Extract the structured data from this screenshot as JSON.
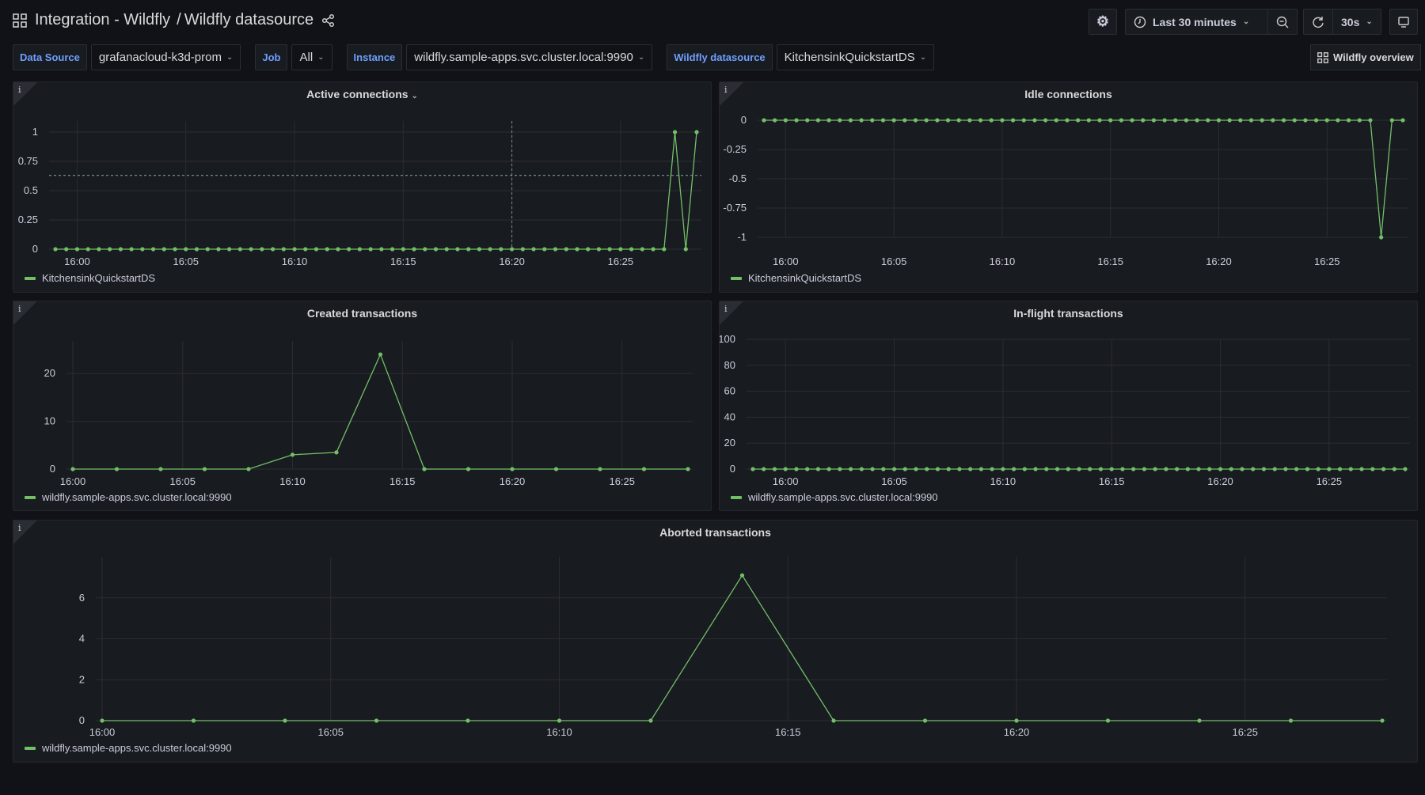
{
  "header": {
    "title": "Integration - Wildfly",
    "separator": "/",
    "subtitle": "Wildfly datasource",
    "time_range": "Last 30 minutes",
    "refresh": "30s"
  },
  "icons": {
    "apps": "grid-icon",
    "share": "share-icon",
    "settings": "gear-icon",
    "clock": "clock-icon",
    "zoom": "zoom-out-icon",
    "refresh": "refresh-icon",
    "tv": "monitor-icon"
  },
  "variables": [
    {
      "label": "Data Source",
      "value": "grafanacloud-k3d-prom"
    },
    {
      "label": "Job",
      "value": "All"
    },
    {
      "label": "Instance",
      "value": "wildfly.sample-apps.svc.cluster.local:9990"
    },
    {
      "label": "Wildfly datasource",
      "value": "KitchensinkQuickstartDS"
    }
  ],
  "dashboard_link": "Wildfly overview",
  "colors": {
    "series": "#73bf69",
    "background": "#111217",
    "panel": "#181b1f",
    "label": "#6e9fff"
  },
  "chart_data": [
    {
      "id": "active",
      "type": "line",
      "title": "Active connections",
      "has_menu": true,
      "legend": "KitchensinkQuickstartDS",
      "interval": "30s",
      "start": "15:59:00",
      "ylim": [
        0,
        1
      ],
      "yticks": [
        "0",
        "0.25",
        "0.5",
        "0.75",
        "1"
      ],
      "xticks": [
        "16:00",
        "16:05",
        "16:10",
        "16:15",
        "16:20",
        "16:25"
      ],
      "hover_time": "16:20:00",
      "values": [
        0,
        0,
        0,
        0,
        0,
        0,
        0,
        0,
        0,
        0,
        0,
        0,
        0,
        0,
        0,
        0,
        0,
        0,
        0,
        0,
        0,
        0,
        0,
        0,
        0,
        0,
        0,
        0,
        0,
        0,
        0,
        0,
        0,
        0,
        0,
        0,
        0,
        0,
        0,
        0,
        0,
        0,
        0,
        0,
        0,
        0,
        0,
        0,
        0,
        0,
        0,
        0,
        0,
        0,
        0,
        0,
        0,
        1,
        0,
        1
      ]
    },
    {
      "id": "idle",
      "type": "line",
      "title": "Idle connections",
      "legend": "KitchensinkQuickstartDS",
      "interval": "30s",
      "start": "15:59:00",
      "ylim": [
        -1,
        0
      ],
      "yticks": [
        "-1",
        "-0.75",
        "-0.5",
        "-0.25",
        "0"
      ],
      "xticks": [
        "16:00",
        "16:05",
        "16:10",
        "16:15",
        "16:20",
        "16:25"
      ],
      "values": [
        0,
        0,
        0,
        0,
        0,
        0,
        0,
        0,
        0,
        0,
        0,
        0,
        0,
        0,
        0,
        0,
        0,
        0,
        0,
        0,
        0,
        0,
        0,
        0,
        0,
        0,
        0,
        0,
        0,
        0,
        0,
        0,
        0,
        0,
        0,
        0,
        0,
        0,
        0,
        0,
        0,
        0,
        0,
        0,
        0,
        0,
        0,
        0,
        0,
        0,
        0,
        0,
        0,
        0,
        0,
        0,
        0,
        -1,
        0,
        0
      ]
    },
    {
      "id": "created",
      "type": "line",
      "title": "Created transactions",
      "legend": "wildfly.sample-apps.svc.cluster.local:9990",
      "interval": "2m",
      "start": "16:00:00",
      "ylim": [
        0,
        25
      ],
      "yticks": [
        "0",
        "10",
        "20"
      ],
      "xticks": [
        "16:00",
        "16:05",
        "16:10",
        "16:15",
        "16:20",
        "16:25"
      ],
      "values": [
        0,
        0,
        0,
        0,
        0,
        3,
        3.5,
        24,
        0,
        0,
        0,
        0,
        0,
        0,
        0
      ]
    },
    {
      "id": "inflight",
      "type": "line",
      "title": "In-flight transactions",
      "legend": "wildfly.sample-apps.svc.cluster.local:9990",
      "interval": "30s",
      "start": "15:58:30",
      "ylim": [
        0,
        100
      ],
      "yticks": [
        "0",
        "20",
        "40",
        "60",
        "80",
        "100"
      ],
      "xticks": [
        "16:00",
        "16:05",
        "16:10",
        "16:15",
        "16:20",
        "16:25"
      ],
      "values": [
        0,
        0,
        0,
        0,
        0,
        0,
        0,
        0,
        0,
        0,
        0,
        0,
        0,
        0,
        0,
        0,
        0,
        0,
        0,
        0,
        0,
        0,
        0,
        0,
        0,
        0,
        0,
        0,
        0,
        0,
        0,
        0,
        0,
        0,
        0,
        0,
        0,
        0,
        0,
        0,
        0,
        0,
        0,
        0,
        0,
        0,
        0,
        0,
        0,
        0,
        0,
        0,
        0,
        0,
        0,
        0,
        0,
        0,
        0,
        0,
        0
      ]
    },
    {
      "id": "aborted",
      "type": "line",
      "title": "Aborted transactions",
      "legend": "wildfly.sample-apps.svc.cluster.local:9990",
      "interval": "2m",
      "start": "16:00:00",
      "ylim": [
        0,
        8
      ],
      "yticks": [
        "0",
        "2",
        "4",
        "6"
      ],
      "xticks": [
        "16:00",
        "16:05",
        "16:10",
        "16:15",
        "16:20",
        "16:25"
      ],
      "values": [
        0,
        0,
        0,
        0,
        0,
        0,
        0,
        7.1,
        0,
        0,
        0,
        0,
        0,
        0,
        0
      ]
    }
  ]
}
